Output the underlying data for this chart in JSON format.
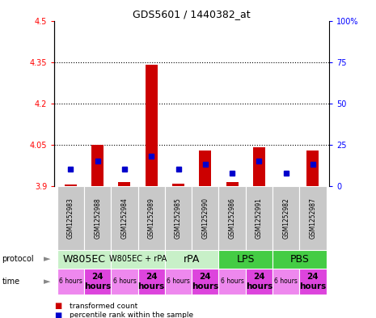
{
  "title": "GDS5601 / 1440382_at",
  "samples": [
    "GSM1252983",
    "GSM1252988",
    "GSM1252984",
    "GSM1252989",
    "GSM1252985",
    "GSM1252990",
    "GSM1252986",
    "GSM1252991",
    "GSM1252982",
    "GSM1252987"
  ],
  "transformed_count": [
    3.905,
    4.048,
    3.915,
    4.34,
    3.908,
    4.03,
    3.915,
    4.04,
    3.9,
    4.03
  ],
  "percentile_rank": [
    10,
    15,
    10,
    18,
    10,
    13,
    8,
    15,
    8,
    13
  ],
  "red_bar_base": 3.9,
  "ylim_left": [
    3.9,
    4.5
  ],
  "ylim_right": [
    0,
    100
  ],
  "yticks_left": [
    3.9,
    4.05,
    4.2,
    4.35,
    4.5
  ],
  "yticks_right": [
    0,
    25,
    50,
    75,
    100
  ],
  "ytick_labels_left": [
    "3.9",
    "4.05",
    "4.2",
    "4.35",
    "4.5"
  ],
  "ytick_labels_right": [
    "0",
    "25",
    "50",
    "75",
    "100%"
  ],
  "dotted_lines": [
    4.05,
    4.2,
    4.35
  ],
  "protocol_spans": [
    {
      "label": "W805EC",
      "start": 0,
      "end": 1,
      "color": "#c8f0c8",
      "fontsize": 9
    },
    {
      "label": "W805EC + rPA",
      "start": 2,
      "end": 3,
      "color": "#c8f0c8",
      "fontsize": 7
    },
    {
      "label": "rPA",
      "start": 4,
      "end": 5,
      "color": "#c8f0c8",
      "fontsize": 9
    },
    {
      "label": "LPS",
      "start": 6,
      "end": 7,
      "color": "#44cc44",
      "fontsize": 9
    },
    {
      "label": "PBS",
      "start": 8,
      "end": 9,
      "color": "#44cc44",
      "fontsize": 9
    }
  ],
  "bar_width": 0.45,
  "red_color": "#cc0000",
  "blue_color": "#0000cc",
  "sample_bg_color": "#c8c8c8",
  "time_6h_color": "#ee88ee",
  "time_24h_color": "#dd44dd",
  "legend_items": [
    {
      "color": "#cc0000",
      "label": "transformed count"
    },
    {
      "color": "#0000cc",
      "label": "percentile rank within the sample"
    }
  ]
}
